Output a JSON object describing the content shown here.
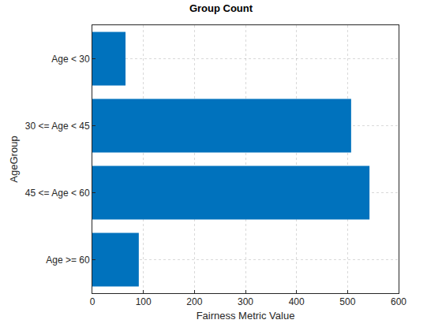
{
  "chart_data": {
    "type": "bar",
    "orientation": "horizontal",
    "title": "Group Count",
    "x_label": "Fairness Metric Value",
    "y_label": "AgeGroup",
    "categories": [
      "Age < 30",
      "30 <= Age < 45",
      "45 <= Age < 60",
      "Age >= 60"
    ],
    "values": [
      65,
      507,
      543,
      91
    ],
    "color": "#0072bd",
    "xlim": [
      0,
      600
    ],
    "xticks": [
      0,
      100,
      200,
      300,
      400,
      500,
      600
    ],
    "grid": true
  }
}
